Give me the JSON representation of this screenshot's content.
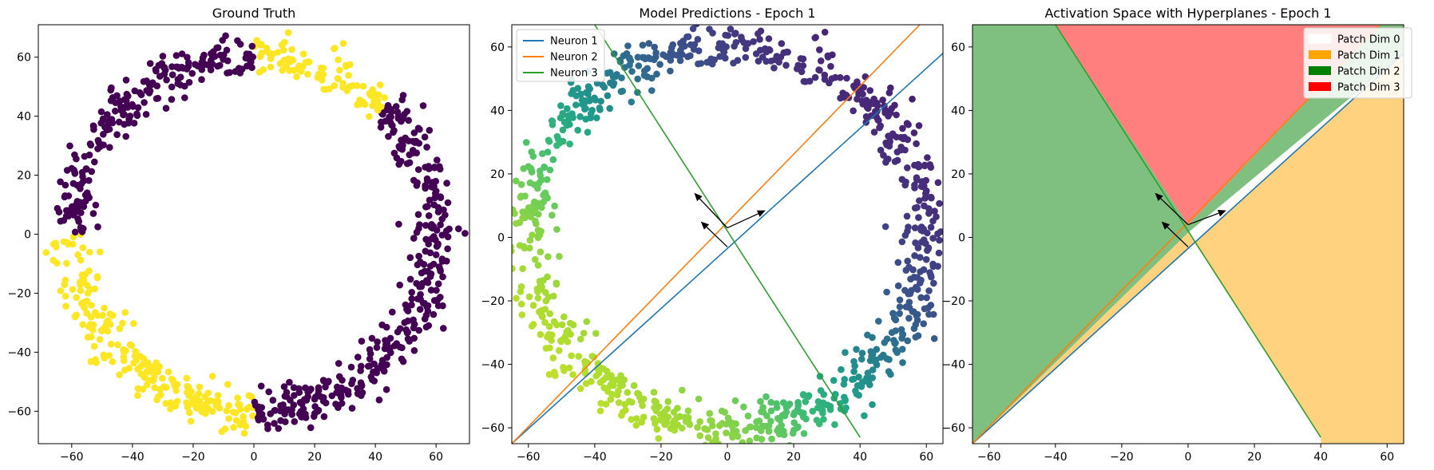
{
  "chart_data": [
    {
      "type": "scatter",
      "title": "Ground Truth",
      "xlabel": "",
      "ylabel": "",
      "xlim": [
        -71,
        71
      ],
      "ylim": [
        -71,
        71
      ],
      "xticks": [
        -60,
        -40,
        -20,
        0,
        20,
        40,
        60
      ],
      "yticks": [
        -60,
        -40,
        -20,
        0,
        20,
        40,
        60
      ],
      "xtick_labels": [
        "−60",
        "−40",
        "−20",
        "0",
        "20",
        "40",
        "60"
      ],
      "ytick_labels": [
        "−60",
        "−40",
        "−20",
        "0",
        "20",
        "40",
        "60"
      ],
      "data_model": {
        "shape": "noisy ring of points",
        "center": [
          0,
          0
        ],
        "radius": 60,
        "radial_noise": 3.5,
        "n_points": 900
      },
      "classes": [
        {
          "label": 1,
          "color": "#fde725",
          "angle_ranges_deg": [
            [
              45,
              90
            ],
            [
              180,
              270
            ]
          ]
        },
        {
          "label": 0,
          "color": "#440154",
          "angle_ranges_deg": [
            [
              90,
              180
            ],
            [
              270,
              405
            ]
          ]
        }
      ],
      "grid": false
    },
    {
      "type": "scatter",
      "title": "Model Predictions - Epoch 1",
      "xlabel": "",
      "ylabel": "",
      "xlim": [
        -65,
        65
      ],
      "ylim": [
        -65,
        67
      ],
      "xticks": [
        -60,
        -40,
        -20,
        0,
        20,
        40,
        60
      ],
      "yticks": [
        -60,
        -40,
        -20,
        0,
        20,
        40,
        60
      ],
      "xtick_labels": [
        "−60",
        "−40",
        "−20",
        "0",
        "20",
        "40",
        "60"
      ],
      "ytick_labels": [
        "−60",
        "−40",
        "−20",
        "0",
        "20",
        "40",
        "60"
      ],
      "colormap": "viridis",
      "color_by": "predicted value",
      "data_model": {
        "shape": "noisy ring of points",
        "center": [
          0,
          0
        ],
        "radius": 60,
        "radial_noise": 3.5,
        "n_points": 900
      },
      "lines": [
        {
          "name": "Neuron 1",
          "color": "#1f77b4",
          "points": [
            [
              -65,
              -65
            ],
            [
              65,
              58
            ]
          ]
        },
        {
          "name": "Neuron 2",
          "color": "#ff7f0e",
          "points": [
            [
              -65,
              -65
            ],
            [
              58,
              67
            ]
          ]
        },
        {
          "name": "Neuron 3",
          "color": "#2ca02c",
          "points": [
            [
              -40,
              67
            ],
            [
              40,
              -63
            ]
          ]
        }
      ],
      "arrows": [
        {
          "from": [
            0,
            3
          ],
          "to": [
            11.5,
            8.5
          ]
        },
        {
          "from": [
            0,
            3
          ],
          "to": [
            -10,
            14
          ]
        },
        {
          "from": [
            0,
            -3
          ],
          "to": [
            -8,
            5
          ]
        }
      ],
      "legend": {
        "position": "top-left",
        "entries": [
          "Neuron 1",
          "Neuron 2",
          "Neuron 3"
        ]
      },
      "grid": false
    },
    {
      "type": "area",
      "title": "Activation Space with Hyperplanes - Epoch 1",
      "xlabel": "",
      "ylabel": "",
      "xlim": [
        -65,
        65
      ],
      "ylim": [
        -65,
        67
      ],
      "xticks": [
        -60,
        -40,
        -20,
        0,
        20,
        40,
        60
      ],
      "yticks": [
        -60,
        -40,
        -20,
        0,
        20,
        40,
        60
      ],
      "xtick_labels": [
        "−60",
        "−40",
        "−20",
        "0",
        "20",
        "40",
        "60"
      ],
      "ytick_labels": [
        "−60",
        "−40",
        "−20",
        "0",
        "20",
        "40",
        "60"
      ],
      "regions": [
        {
          "name": "Patch Dim 0",
          "color": "#ffffff",
          "polygon": [
            [
              -65,
              -65
            ],
            [
              -65,
              -65
            ],
            [
              0,
              1.5
            ],
            [
              40,
              -63
            ],
            [
              40,
              -65
            ]
          ]
        },
        {
          "name": "Patch Dim 1",
          "color": "#ffa500",
          "polygon": [
            [
              0,
              1.5
            ],
            [
              -65,
              -65
            ],
            [
              65,
              58
            ],
            [
              65,
              -65
            ],
            [
              40,
              -65
            ],
            [
              40,
              -63
            ]
          ]
        },
        {
          "name": "Patch Dim 2",
          "color": "#008000",
          "polygon": [
            [
              -65,
              67
            ],
            [
              -40,
              67
            ],
            [
              0,
              4
            ],
            [
              58,
              67
            ],
            [
              65,
              67
            ],
            [
              65,
              58
            ],
            [
              0,
              1.5
            ],
            [
              -65,
              -65
            ]
          ]
        },
        {
          "name": "Patch Dim 3",
          "color": "#ff0000",
          "polygon": [
            [
              -40,
              67
            ],
            [
              58,
              67
            ],
            [
              0,
              4
            ]
          ]
        }
      ],
      "region_opacity": 0.5,
      "lines": [
        {
          "name": "Neuron 1",
          "color": "#1f77b4",
          "points": [
            [
              -65,
              -65
            ],
            [
              65,
              58
            ]
          ]
        },
        {
          "name": "Neuron 2",
          "color": "#ff7f0e",
          "points": [
            [
              -65,
              -65
            ],
            [
              58,
              67
            ]
          ]
        },
        {
          "name": "Neuron 3",
          "color": "#2ca02c",
          "points": [
            [
              -40,
              67
            ],
            [
              40,
              -63
            ]
          ]
        }
      ],
      "arrows": [
        {
          "from": [
            0,
            4
          ],
          "to": [
            11.5,
            8.5
          ]
        },
        {
          "from": [
            0,
            4
          ],
          "to": [
            -10,
            14
          ]
        },
        {
          "from": [
            0,
            -3
          ],
          "to": [
            -8,
            5
          ]
        }
      ],
      "legend": {
        "position": "top-right",
        "entries": [
          "Patch Dim 0",
          "Patch Dim 1",
          "Patch Dim 2",
          "Patch Dim 3"
        ]
      },
      "grid": false
    }
  ]
}
